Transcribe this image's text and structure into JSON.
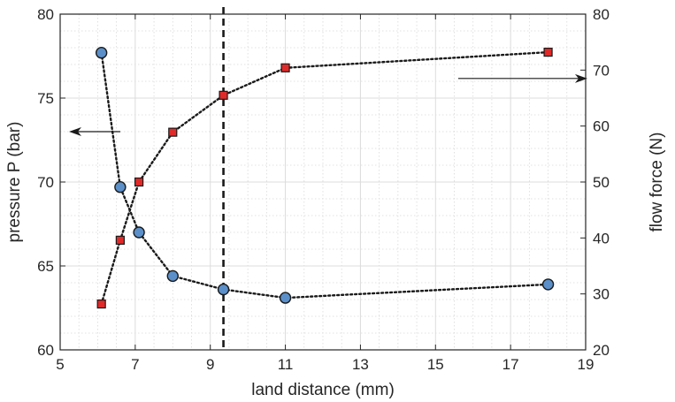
{
  "chart_data": {
    "type": "line",
    "xlabel": "land distance (mm)",
    "ylabel_left": "pressure P (bar)",
    "ylabel_right": "flow force (N)",
    "xlim": [
      5,
      19
    ],
    "ylim_left": [
      60,
      80
    ],
    "ylim_right": [
      20,
      80
    ],
    "x_ticks": [
      "5",
      "7",
      "9",
      "11",
      "13",
      "15",
      "17",
      "19"
    ],
    "y_left_ticks": [
      "60",
      "65",
      "70",
      "75",
      "80"
    ],
    "y_right_ticks": [
      "20",
      "30",
      "40",
      "50",
      "60",
      "70",
      "80"
    ],
    "grid": true,
    "vertical_reference_line_x": 9.35,
    "series": [
      {
        "axis": "left",
        "marker": "circle",
        "color": "#5b8fc9",
        "x": [
          6.1,
          6.6,
          7.1,
          8.0,
          9.35,
          11.0,
          18.0
        ],
        "y": [
          77.7,
          69.7,
          67.0,
          64.4,
          63.6,
          63.1,
          63.9
        ]
      },
      {
        "axis": "right",
        "marker": "square",
        "color": "#e02a2a",
        "x": [
          6.1,
          6.6,
          7.1,
          8.0,
          9.35,
          11.0,
          18.0
        ],
        "y": [
          28.2,
          39.6,
          50.0,
          58.9,
          65.5,
          70.4,
          73.2
        ]
      }
    ],
    "annotations": [
      {
        "kind": "arrow",
        "direction": "left",
        "meaning": "left axis series"
      },
      {
        "kind": "arrow",
        "direction": "right",
        "meaning": "right axis series"
      }
    ]
  }
}
